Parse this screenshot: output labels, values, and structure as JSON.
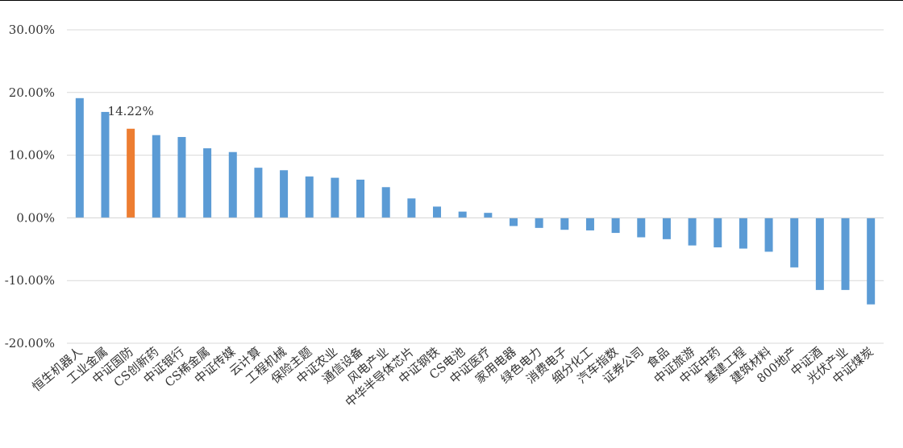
{
  "chart_data": {
    "type": "bar",
    "title": "",
    "xlabel": "",
    "ylabel": "",
    "ylim": [
      -20,
      30
    ],
    "yticks": [
      30,
      20,
      10,
      0,
      -10,
      -20
    ],
    "ytick_labels": [
      "30.00%",
      "20.00%",
      "10.00%",
      "0.00%",
      "-10.00%",
      "-20.00%"
    ],
    "grid": true,
    "legend": "none",
    "colors": {
      "default": "#5b9bd5",
      "highlight": "#ed7d31",
      "grid": "#d9d9d9"
    },
    "highlight_index": 2,
    "categories": [
      "恒生机器人",
      "工业金属",
      "中证国防",
      "CS创新药",
      "中证银行",
      "CS稀金属",
      "中证传媒",
      "云计算",
      "工程机械",
      "保险主题",
      "中证农业",
      "通信设备",
      "风电产业",
      "中华半导体芯片",
      "中证钢铁",
      "CS电池",
      "中证医疗",
      "家用电器",
      "绿色电力",
      "消费电子",
      "细分化工",
      "汽车指数",
      "证券公司",
      "食品",
      "中证旅游",
      "中证中药",
      "基建工程",
      "建筑材料",
      "800地产",
      "中证酒",
      "光伏产业",
      "中证煤炭"
    ],
    "values": [
      19.1,
      16.9,
      14.22,
      13.2,
      12.9,
      11.1,
      10.5,
      8.0,
      7.6,
      6.6,
      6.4,
      6.1,
      4.9,
      3.1,
      1.8,
      1.0,
      0.8,
      -1.3,
      -1.6,
      -1.9,
      -2.0,
      -2.4,
      -3.1,
      -3.4,
      -4.4,
      -4.7,
      -4.9,
      -5.4,
      -7.9,
      -11.5,
      -11.5,
      -13.8
    ],
    "data_labels": [
      {
        "index": 2,
        "text": "14.22%"
      }
    ]
  }
}
